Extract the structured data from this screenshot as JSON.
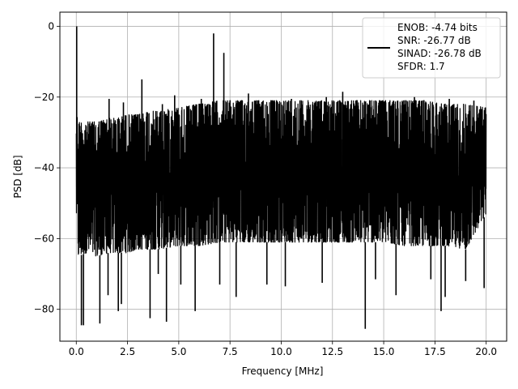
{
  "chart_data": {
    "type": "line",
    "title": "",
    "xlabel": "Frequency [MHz]",
    "ylabel": "PSD [dB]",
    "xlim": [
      -0.8,
      21.0
    ],
    "ylim": [
      -89,
      4
    ],
    "xticks": [
      0.0,
      2.5,
      5.0,
      7.5,
      10.0,
      12.5,
      15.0,
      17.5,
      20.0
    ],
    "xtick_labels": [
      "0.0",
      "2.5",
      "5.0",
      "7.5",
      "10.0",
      "12.5",
      "15.0",
      "17.5",
      "20.0"
    ],
    "yticks": [
      0,
      -20,
      -40,
      -60,
      -80
    ],
    "ytick_labels": [
      "0",
      "−20",
      "−40",
      "−60",
      "−80"
    ],
    "grid": true,
    "legend_position": "top-right",
    "line_color": "#000000",
    "legend": [
      "ENOB: -4.74 bits",
      "SNR: -26.77 dB",
      "SINAD: -26.78 dB",
      "SFDR: 1.7"
    ],
    "series": [
      {
        "envelope": {
          "x": [
            0.0,
            0.1,
            0.5,
            1.0,
            1.6,
            2.0,
            2.5,
            3.0,
            3.5,
            4.0,
            5.0,
            6.0,
            7.0,
            7.5,
            8.0,
            9.0,
            10.0,
            11.0,
            12.0,
            13.0,
            14.0,
            15.0,
            16.0,
            17.0,
            18.0,
            19.0,
            20.0
          ],
          "upper": [
            -24,
            -27,
            -27,
            -27,
            -26,
            -26,
            -25,
            -25,
            -24,
            -24,
            -23,
            -22,
            -21,
            -21,
            -21,
            -21,
            -21,
            -21,
            -21,
            -21,
            -21,
            -21,
            -21,
            -21,
            -22,
            -22,
            -23
          ],
          "lower": [
            -53,
            -65,
            -64,
            -65,
            -64,
            -64,
            -64,
            -63,
            -63,
            -63,
            -62,
            -62,
            -61,
            -61,
            -61,
            -61,
            -61,
            -61,
            -61,
            -61,
            -61,
            -61,
            -62,
            -62,
            -62,
            -63,
            -53
          ]
        },
        "peaks": {
          "x": [
            0.02,
            1.6,
            2.3,
            3.2,
            4.2,
            4.8,
            6.1,
            6.7,
            7.2,
            8.4,
            10.5,
            12.2,
            13.0,
            15.1,
            16.5,
            18.2,
            19.4
          ],
          "y": [
            0.0,
            -20.5,
            -21.5,
            -15.0,
            -22.0,
            -19.5,
            -20.5,
            -2.0,
            -7.5,
            -19.0,
            -20.5,
            -20.0,
            -18.5,
            -21.5,
            -20.0,
            -20.5,
            -21.0
          ]
        },
        "dips": {
          "x": [
            0.25,
            0.35,
            1.15,
            1.55,
            2.05,
            2.2,
            3.6,
            4.0,
            4.4,
            5.1,
            5.8,
            7.0,
            7.8,
            9.3,
            10.2,
            12.0,
            14.1,
            14.6,
            15.6,
            17.3,
            17.8,
            18.0,
            19.0,
            19.9
          ],
          "y": [
            -84.5,
            -84.5,
            -84.0,
            -76.0,
            -80.5,
            -78.5,
            -82.5,
            -70.0,
            -83.5,
            -73.0,
            -80.5,
            -73.0,
            -76.5,
            -73.0,
            -73.5,
            -72.5,
            -85.5,
            -71.5,
            -76.0,
            -71.5,
            -80.5,
            -76.5,
            -72.0,
            -74.0
          ]
        }
      }
    ]
  }
}
